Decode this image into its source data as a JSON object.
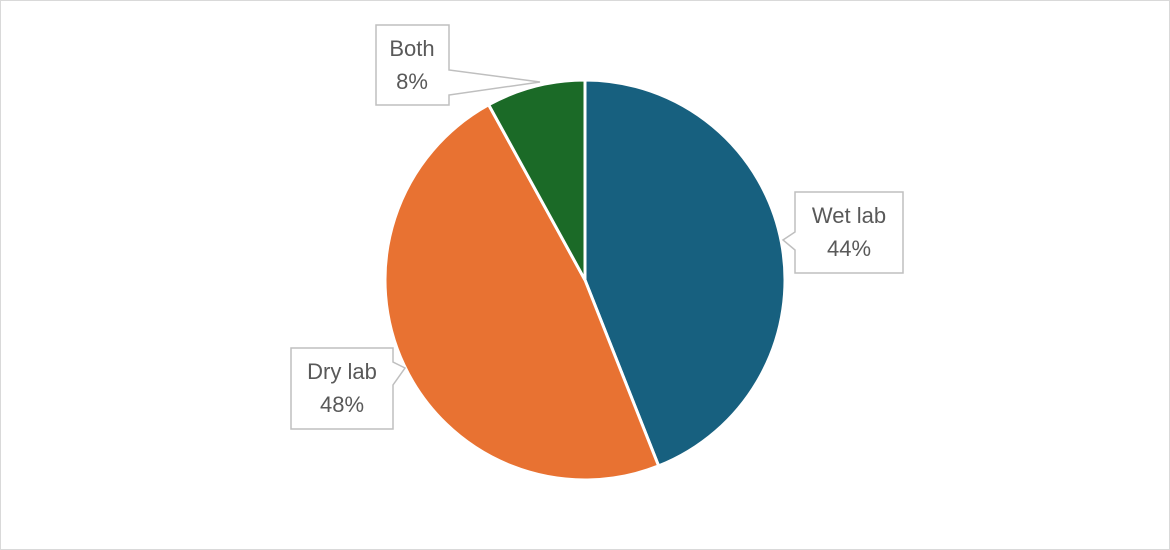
{
  "chart_data": {
    "type": "pie",
    "categories": [
      "Wet lab",
      "Dry lab",
      "Both"
    ],
    "values": [
      44,
      48,
      8
    ],
    "value_labels": [
      "44%",
      "48%",
      "8%"
    ],
    "colors": [
      "#17607f",
      "#e87232",
      "#1b6a27"
    ]
  }
}
